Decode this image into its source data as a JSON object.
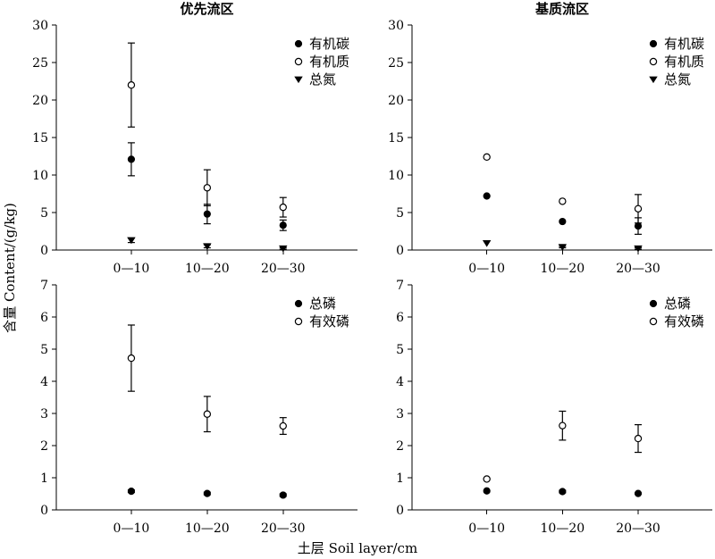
{
  "figure": {
    "ylabel": "含量 Content/(g/kg)",
    "xlabel": "土层 Soil layer/cm"
  },
  "chart_data": [
    {
      "type": "scatter",
      "title": "优先流区",
      "categories": [
        "0—10",
        "10—20",
        "20—30"
      ],
      "ylim": [
        0,
        30
      ],
      "yticks": [
        0,
        5,
        10,
        15,
        20,
        25,
        30
      ],
      "legend_position": "top-right",
      "series": [
        {
          "name": "有机碳",
          "marker": "filled-circle",
          "values": [
            12.1,
            4.8,
            3.3
          ],
          "err": [
            2.2,
            1.3,
            0.7
          ]
        },
        {
          "name": "有机质",
          "marker": "open-circle",
          "values": [
            22.0,
            8.3,
            5.7
          ],
          "err": [
            5.6,
            2.4,
            1.3
          ]
        },
        {
          "name": "总氮",
          "marker": "filled-triangle-down",
          "values": [
            1.3,
            0.5,
            0.2
          ],
          "err": [
            0.3,
            0.2,
            0.1
          ]
        }
      ]
    },
    {
      "type": "scatter",
      "title": "基质流区",
      "categories": [
        "0—10",
        "10—20",
        "20—30"
      ],
      "ylim": [
        0,
        30
      ],
      "yticks": [
        0,
        5,
        10,
        15,
        20,
        25,
        30
      ],
      "legend_position": "top-right",
      "series": [
        {
          "name": "有机碳",
          "marker": "filled-circle",
          "values": [
            7.2,
            3.8,
            3.2
          ],
          "err": [
            0,
            0,
            1.1
          ]
        },
        {
          "name": "有机质",
          "marker": "open-circle",
          "values": [
            12.4,
            6.5,
            5.5
          ],
          "err": [
            0,
            0,
            1.9
          ]
        },
        {
          "name": "总氮",
          "marker": "filled-triangle-down",
          "values": [
            0.9,
            0.4,
            0.2
          ],
          "err": [
            0,
            0.1,
            0.1
          ]
        }
      ]
    },
    {
      "type": "scatter",
      "title": "",
      "categories": [
        "0—10",
        "10—20",
        "20—30"
      ],
      "ylim": [
        0,
        7
      ],
      "yticks": [
        0,
        1,
        2,
        3,
        4,
        5,
        6,
        7
      ],
      "legend_position": "top-right",
      "series": [
        {
          "name": "总磷",
          "marker": "filled-circle",
          "values": [
            0.58,
            0.51,
            0.46
          ],
          "err": [
            0.04,
            0.04,
            0.04
          ]
        },
        {
          "name": "有效磷",
          "marker": "open-circle",
          "values": [
            4.72,
            2.98,
            2.61
          ],
          "err": [
            1.03,
            0.55,
            0.26
          ]
        }
      ]
    },
    {
      "type": "scatter",
      "title": "",
      "categories": [
        "0—10",
        "10—20",
        "20—30"
      ],
      "ylim": [
        0,
        7
      ],
      "yticks": [
        0,
        1,
        2,
        3,
        4,
        5,
        6,
        7
      ],
      "legend_position": "top-right",
      "series": [
        {
          "name": "总磷",
          "marker": "filled-circle",
          "values": [
            0.59,
            0.57,
            0.51
          ],
          "err": [
            0,
            0.04,
            0.02
          ]
        },
        {
          "name": "有效磷",
          "marker": "open-circle",
          "values": [
            0.96,
            2.62,
            2.22
          ],
          "err": [
            0,
            0.45,
            0.43
          ]
        }
      ]
    }
  ]
}
